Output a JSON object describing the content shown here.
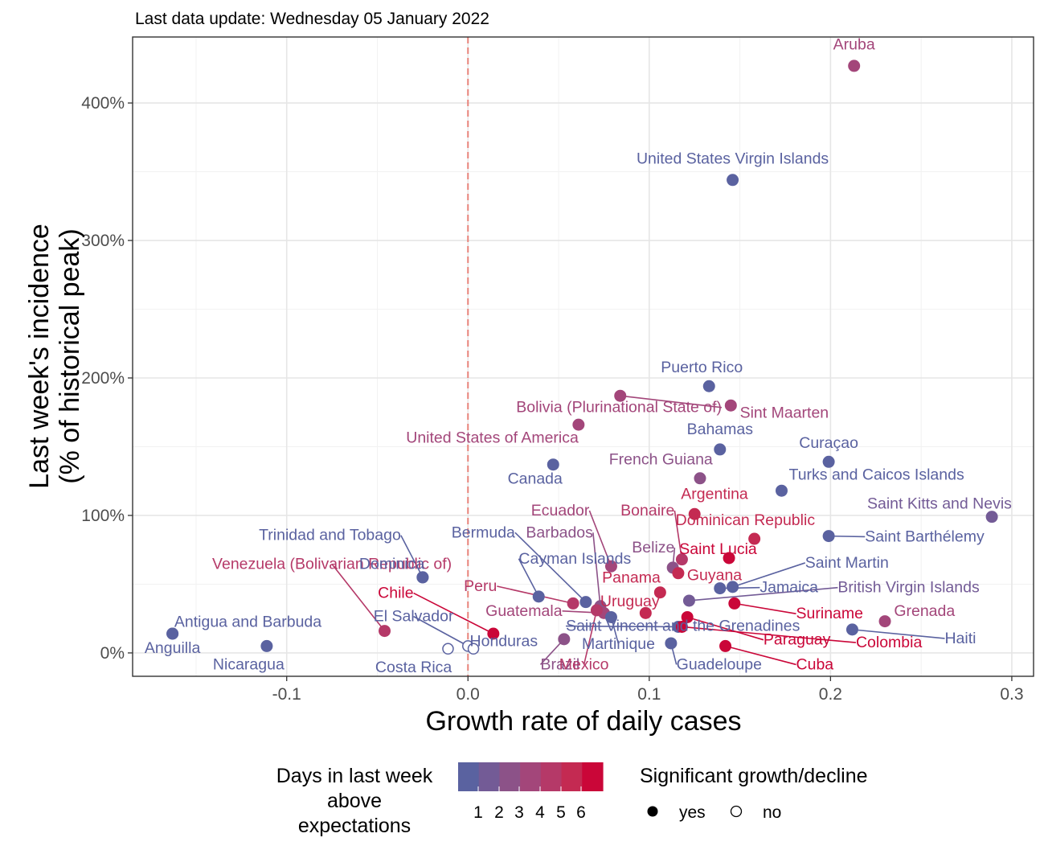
{
  "subtitle": "Last data update: Wednesday 05 January 2022",
  "chart_data": {
    "type": "scatter",
    "xlabel": "Growth rate of daily cases",
    "ylabel_lines": [
      "Last week's incidence",
      "(% of historical peak)"
    ],
    "xlim": [
      -0.185,
      0.312
    ],
    "ylim": [
      -17,
      448
    ],
    "x_ticks": [
      -0.1,
      0.0,
      0.1,
      0.2,
      0.3
    ],
    "x_tick_labels": [
      "-0.1",
      "0.0",
      "0.1",
      "0.2",
      "0.3"
    ],
    "y_ticks": [
      0,
      100,
      200,
      300,
      400
    ],
    "y_tick_labels": [
      "0%",
      "100%",
      "200%",
      "300%",
      "400%"
    ],
    "reference_line_x": 0,
    "reference_line_color": "#e8837a",
    "grid": true,
    "color_scale": {
      "1": "#5a62a0",
      "2": "#735b96",
      "3": "#8c5288",
      "4": "#a3467a",
      "5": "#b53968",
      "6": "#c42a52",
      "7": "#ca0638"
    },
    "points": [
      {
        "name": "Aruba",
        "x": 0.213,
        "y": 427,
        "days": 4,
        "sig": true,
        "lx": 0.213,
        "ly": 439,
        "anchor": "middle"
      },
      {
        "name": "United States Virgin Islands",
        "x": 0.146,
        "y": 344,
        "days": 1,
        "sig": true,
        "lx": 0.146,
        "ly": 356,
        "anchor": "middle"
      },
      {
        "name": "Puerto Rico",
        "x": 0.133,
        "y": 194,
        "days": 1,
        "sig": true,
        "lx": 0.129,
        "ly": 204,
        "anchor": "middle"
      },
      {
        "name": "Bolivia (Plurinational State of)",
        "x": 0.084,
        "y": 187,
        "days": 4,
        "sig": true,
        "lx": 0.14,
        "ly": 175,
        "anchor": "end",
        "line": true
      },
      {
        "name": "Sint Maarten",
        "x": 0.145,
        "y": 180,
        "days": 4,
        "sig": true,
        "lx": 0.15,
        "ly": 171,
        "anchor": "start"
      },
      {
        "name": "United States of America",
        "x": 0.061,
        "y": 166,
        "days": 4,
        "sig": true,
        "lx": 0.061,
        "ly": 153,
        "anchor": "end"
      },
      {
        "name": "Bahamas",
        "x": 0.139,
        "y": 148,
        "days": 1,
        "sig": true,
        "lx": 0.139,
        "ly": 159,
        "anchor": "middle"
      },
      {
        "name": "Curaçao",
        "x": 0.199,
        "y": 139,
        "days": 1,
        "sig": true,
        "lx": 0.199,
        "ly": 149,
        "anchor": "middle"
      },
      {
        "name": "Canada",
        "x": 0.047,
        "y": 137,
        "days": 1,
        "sig": true,
        "lx": 0.037,
        "ly": 123,
        "anchor": "middle"
      },
      {
        "name": "French Guiana",
        "x": 0.128,
        "y": 127,
        "days": 3,
        "sig": true,
        "lx": 0.135,
        "ly": 137,
        "anchor": "end"
      },
      {
        "name": "Turks and Caicos Islands",
        "x": 0.173,
        "y": 118,
        "days": 1,
        "sig": true,
        "lx": 0.177,
        "ly": 126,
        "anchor": "start"
      },
      {
        "name": "Argentina",
        "x": 0.125,
        "y": 101,
        "days": 6,
        "sig": true,
        "lx": 0.136,
        "ly": 112,
        "anchor": "middle"
      },
      {
        "name": "Saint Kitts and Nevis",
        "x": 0.289,
        "y": 99,
        "days": 2,
        "sig": true,
        "lx": 0.3,
        "ly": 105,
        "anchor": "end"
      },
      {
        "name": "Ecuador",
        "x": 0.079,
        "y": 63,
        "days": 4,
        "sig": true,
        "lx": 0.067,
        "ly": 100,
        "anchor": "end",
        "line": true
      },
      {
        "name": "Bonaire",
        "x": 0.118,
        "y": 68,
        "days": 5,
        "sig": true,
        "lx": 0.114,
        "ly": 100,
        "anchor": "end",
        "line": true
      },
      {
        "name": "Dominican Republic",
        "x": 0.158,
        "y": 83,
        "days": 6,
        "sig": true,
        "lx": 0.153,
        "ly": 93,
        "anchor": "middle"
      },
      {
        "name": "Saint Barthélemy",
        "x": 0.199,
        "y": 85,
        "days": 1,
        "sig": true,
        "lx": 0.219,
        "ly": 81,
        "anchor": "start",
        "line": true
      },
      {
        "name": "Trinidad and Tobago",
        "x": -0.025,
        "y": 55,
        "days": 1,
        "sig": true,
        "lx": -0.037,
        "ly": 82,
        "anchor": "end",
        "line": true
      },
      {
        "name": "Bermuda",
        "x": 0.065,
        "y": 37,
        "days": 1,
        "sig": true,
        "lx": 0.026,
        "ly": 84,
        "anchor": "end",
        "line": true
      },
      {
        "name": "Barbados",
        "x": 0.073,
        "y": 34,
        "days": 3,
        "sig": true,
        "lx": 0.069,
        "ly": 84,
        "anchor": "end",
        "line": true
      },
      {
        "name": "Belize",
        "x": 0.113,
        "y": 62,
        "days": 3,
        "sig": true,
        "lx": 0.114,
        "ly": 73,
        "anchor": "end",
        "line": true
      },
      {
        "name": "Saint Lucia",
        "x": 0.144,
        "y": 69,
        "days": 7,
        "sig": true,
        "lx": 0.138,
        "ly": 72,
        "anchor": "middle"
      },
      {
        "name": "Saint Martin",
        "x": 0.146,
        "y": 48,
        "days": 1,
        "sig": true,
        "lx": 0.186,
        "ly": 62,
        "anchor": "start",
        "line": true
      },
      {
        "name": "Venezuela (Bolivarian Republic of)",
        "x": -0.046,
        "y": 16,
        "days": 5,
        "sig": true,
        "lx": -0.075,
        "ly": 61,
        "anchor": "middle",
        "line": true
      },
      {
        "name": "Dominica",
        "x": -0.025,
        "y": 55,
        "days": 1,
        "sig": true,
        "lx": -0.042,
        "ly": 61,
        "anchor": "middle"
      },
      {
        "name": "Cayman Islands",
        "x": 0.039,
        "y": 41,
        "days": 1,
        "sig": true,
        "lx": 0.028,
        "ly": 65,
        "anchor": "start",
        "line": true
      },
      {
        "name": "Guyana",
        "x": 0.116,
        "y": 58,
        "days": 6,
        "sig": true,
        "lx": 0.136,
        "ly": 53,
        "anchor": "middle"
      },
      {
        "name": "Panama",
        "x": 0.106,
        "y": 44,
        "days": 6,
        "sig": true,
        "lx": 0.074,
        "ly": 51,
        "anchor": "start"
      },
      {
        "name": "Jamaica",
        "x": 0.139,
        "y": 47,
        "days": 1,
        "sig": true,
        "lx": 0.161,
        "ly": 44,
        "anchor": "start",
        "line": true
      },
      {
        "name": "British Virgin Islands",
        "x": 0.122,
        "y": 38,
        "days": 2,
        "sig": true,
        "lx": 0.204,
        "ly": 44,
        "anchor": "start",
        "line": true
      },
      {
        "name": "Chile",
        "x": 0.014,
        "y": 14,
        "days": 7,
        "sig": true,
        "lx": -0.03,
        "ly": 40,
        "anchor": "end",
        "line": true
      },
      {
        "name": "Peru",
        "x": 0.058,
        "y": 36,
        "days": 5,
        "sig": true,
        "lx": 0.016,
        "ly": 45,
        "anchor": "end",
        "line": true
      },
      {
        "name": "Uruguay",
        "x": 0.098,
        "y": 29,
        "days": 6,
        "sig": true,
        "lx": 0.073,
        "ly": 34,
        "anchor": "start"
      },
      {
        "name": "Suriname",
        "x": 0.147,
        "y": 36,
        "days": 7,
        "sig": true,
        "lx": 0.181,
        "ly": 25,
        "anchor": "start",
        "line": true
      },
      {
        "name": "Grenada",
        "x": 0.23,
        "y": 23,
        "days": 4,
        "sig": true,
        "lx": 0.235,
        "ly": 27,
        "anchor": "start"
      },
      {
        "name": "Guatemala",
        "x": 0.075,
        "y": 29,
        "days": 4,
        "sig": true,
        "lx": 0.052,
        "ly": 27,
        "anchor": "end",
        "line": true
      },
      {
        "name": "El Salvador",
        "x": 0.0,
        "y": 5,
        "days": 1,
        "sig": false,
        "lx": -0.03,
        "ly": 23,
        "anchor": "middle",
        "line": true
      },
      {
        "name": "Antigua and Barbuda",
        "x": -0.163,
        "y": 14,
        "days": 1,
        "sig": true,
        "lx": -0.162,
        "ly": 19,
        "anchor": "start"
      },
      {
        "name": "Saint Vincent and the Grenadines",
        "x": 0.116,
        "y": 19,
        "days": 1,
        "sig": true,
        "lx": 0.054,
        "ly": 16,
        "anchor": "start",
        "line": true
      },
      {
        "name": "Paraguay",
        "x": 0.121,
        "y": 26,
        "days": 7,
        "sig": true,
        "lx": 0.163,
        "ly": 6,
        "anchor": "start",
        "line": true
      },
      {
        "name": "Colombia",
        "x": 0.118,
        "y": 19,
        "days": 7,
        "sig": true,
        "lx": 0.214,
        "ly": 4,
        "anchor": "start",
        "line": true
      },
      {
        "name": "Haiti",
        "x": 0.212,
        "y": 17,
        "days": 1,
        "sig": true,
        "lx": 0.263,
        "ly": 7,
        "anchor": "start",
        "line": true
      },
      {
        "name": "Honduras",
        "x": 0.003,
        "y": 3,
        "days": 1,
        "sig": false,
        "lx": 0.001,
        "ly": 5,
        "anchor": "start"
      },
      {
        "name": "Anguilla",
        "x": -0.163,
        "y": 14,
        "days": 1,
        "sig": true,
        "lx": -0.163,
        "ly": 0,
        "anchor": "middle"
      },
      {
        "name": "Nicaragua",
        "x": -0.111,
        "y": 5,
        "days": 1,
        "sig": true,
        "lx": -0.121,
        "ly": -12,
        "anchor": "middle"
      },
      {
        "name": "Costa Rica",
        "x": -0.011,
        "y": 3,
        "days": 1,
        "sig": false,
        "lx": -0.03,
        "ly": -14,
        "anchor": "middle"
      },
      {
        "name": "Brazil",
        "x": 0.053,
        "y": 10,
        "days": 3,
        "sig": true,
        "lx": 0.04,
        "ly": -12,
        "anchor": "start",
        "line": true
      },
      {
        "name": "Mexico",
        "x": 0.071,
        "y": 31,
        "days": 5,
        "sig": true,
        "lx": 0.064,
        "ly": -12,
        "anchor": "middle",
        "line": true
      },
      {
        "name": "Martinique",
        "x": 0.079,
        "y": 26,
        "days": 1,
        "sig": true,
        "lx": 0.083,
        "ly": 3,
        "anchor": "middle",
        "line": true
      },
      {
        "name": "Guadeloupe",
        "x": 0.112,
        "y": 7,
        "days": 1,
        "sig": true,
        "lx": 0.115,
        "ly": -12,
        "anchor": "start",
        "line": true
      },
      {
        "name": "Cuba",
        "x": 0.142,
        "y": 5,
        "days": 7,
        "sig": true,
        "lx": 0.181,
        "ly": -12,
        "anchor": "start",
        "line": true
      }
    ]
  },
  "legend": {
    "days_title_lines": [
      "Days in last week",
      "above",
      "expectations"
    ],
    "days_labels": [
      "1",
      "2",
      "3",
      "4",
      "5",
      "6"
    ],
    "days_gradient": [
      "#5a62a0",
      "#735b96",
      "#8c5288",
      "#a3467a",
      "#b53968",
      "#c42a52",
      "#ca0638"
    ],
    "sig_title": "Significant growth/decline",
    "sig_yes": "yes",
    "sig_no": "no"
  }
}
